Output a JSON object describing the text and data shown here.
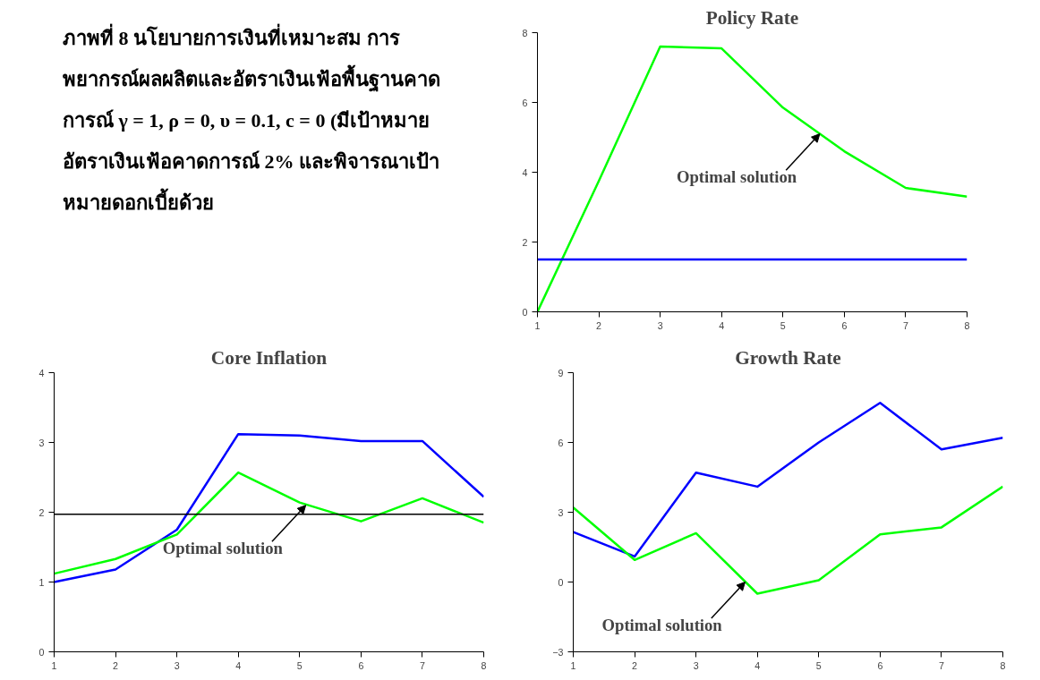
{
  "chart_data": [
    {
      "type": "other",
      "title": "ภาพที่ 8 นโยบายการเงินที่เหมาะสม การพยากรณ์ผลผลิตและอัตราเงินเฟ้อพื้นฐานคาดการณ์ γ = 1, ρ = 0, υ = 0.1, c = 0 (มีเป้าหมายอัตราเงินเฟ้อคาดการณ์ 2% และพิจารณาเป้าหมายดอกเบี้ยด้วย"
    },
    {
      "type": "line",
      "title": "Policy Rate",
      "x": [
        1,
        2,
        3,
        4,
        5,
        6,
        7,
        8
      ],
      "xlim": [
        1,
        8
      ],
      "xticks": [
        1,
        2,
        3,
        4,
        5,
        6,
        7,
        8
      ],
      "ylim": [
        0,
        8
      ],
      "yticks": [
        0,
        2,
        4,
        6,
        8
      ],
      "grid": false,
      "series": [
        {
          "color": "#00ff00",
          "values": [
            0,
            3.75,
            7.6,
            7.55,
            5.85,
            4.6,
            3.55,
            3.3
          ]
        },
        {
          "color": "#0000ff",
          "values": [
            1.5,
            1.5,
            1.5,
            1.5,
            1.5,
            1.5,
            1.5,
            1.5
          ]
        }
      ],
      "annotations": [
        {
          "text": "Optimal solution",
          "x": 5.6,
          "y": 5.1
        }
      ]
    },
    {
      "type": "line",
      "title": "Core Inflation",
      "x": [
        1,
        2,
        3,
        4,
        5,
        6,
        7,
        8
      ],
      "xlim": [
        1,
        8
      ],
      "xticks": [
        1,
        2,
        3,
        4,
        5,
        6,
        7,
        8
      ],
      "ylim": [
        0,
        4
      ],
      "yticks": [
        0,
        1,
        2,
        3,
        4
      ],
      "grid": false,
      "series": [
        {
          "color": "#0000ff",
          "values": [
            1.0,
            1.18,
            1.75,
            3.12,
            3.1,
            3.02,
            3.02,
            2.22
          ]
        },
        {
          "color": "#00ff00",
          "values": [
            1.12,
            1.33,
            1.68,
            2.57,
            2.14,
            1.87,
            2.2,
            1.85
          ]
        }
      ],
      "ref_lines": [
        {
          "axis": "y",
          "value": 1.97,
          "color": "#000000"
        }
      ],
      "annotations": [
        {
          "text": "Optimal solution",
          "x": 5.1,
          "y": 2.1
        }
      ]
    },
    {
      "type": "line",
      "title": "Growth Rate",
      "x": [
        1,
        2,
        3,
        4,
        5,
        6,
        7,
        8
      ],
      "xlim": [
        1,
        8
      ],
      "xticks": [
        1,
        2,
        3,
        4,
        5,
        6,
        7,
        8
      ],
      "ylim": [
        -3,
        9
      ],
      "yticks": [
        -3,
        0,
        3,
        6,
        9
      ],
      "grid": false,
      "series": [
        {
          "color": "#0000ff",
          "values": [
            2.15,
            1.1,
            4.7,
            4.1,
            6.0,
            7.7,
            5.7,
            6.2
          ]
        },
        {
          "color": "#00ff00",
          "values": [
            3.2,
            0.95,
            2.1,
            -0.5,
            0.08,
            2.05,
            2.35,
            4.1
          ]
        }
      ],
      "annotations": [
        {
          "text": "Optimal solution",
          "x": 3.8,
          "y": 0
        }
      ]
    }
  ]
}
